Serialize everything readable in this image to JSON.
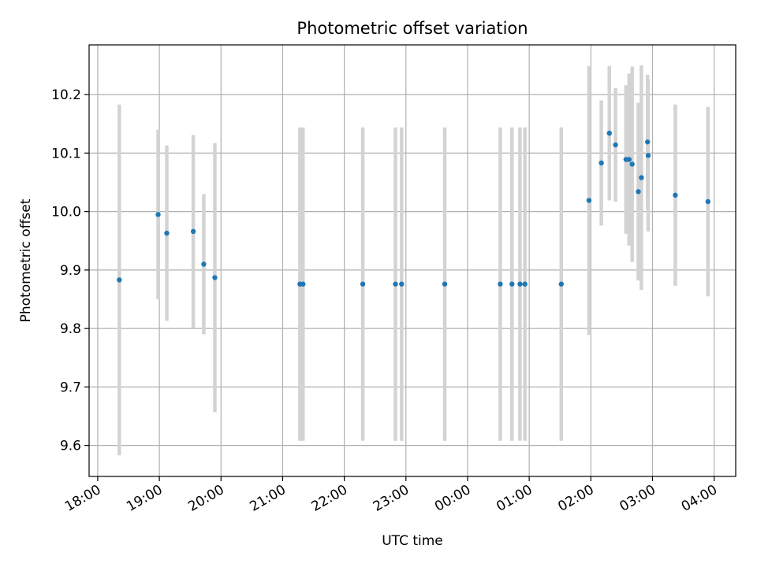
{
  "chart_data": {
    "type": "scatter",
    "title": "Photometric offset variation",
    "xlabel": "UTC time",
    "ylabel": "Photometric offset",
    "x_unit": "hours after 18:00 UTC (values past 24 wrap to next day)",
    "x_ticks": [
      "18:00",
      "19:00",
      "20:00",
      "21:00",
      "22:00",
      "23:00",
      "00:00",
      "01:00",
      "02:00",
      "03:00",
      "04:00"
    ],
    "y_ticks": [
      "9.6",
      "9.7",
      "9.8",
      "9.9",
      "10.0",
      "10.1",
      "10.2"
    ],
    "xlim": [
      -0.14,
      10.35
    ],
    "ylim": [
      9.547,
      10.285
    ],
    "grid": true,
    "colors": {
      "point": "#1f77b4",
      "errorbar": "#d3d3d3",
      "grid": "#b0b0b0"
    },
    "series": [
      {
        "points": [
          {
            "x": 0.35,
            "y": 9.883,
            "err": 0.3
          },
          {
            "x": 0.98,
            "y": 9.995,
            "err": 0.145
          },
          {
            "x": 1.12,
            "y": 9.963,
            "err": 0.15
          },
          {
            "x": 1.55,
            "y": 9.966,
            "err": 0.165
          },
          {
            "x": 1.72,
            "y": 9.91,
            "err": 0.12
          },
          {
            "x": 1.9,
            "y": 9.887,
            "err": 0.23
          },
          {
            "x": 3.28,
            "y": 9.876,
            "err": 0.268
          },
          {
            "x": 3.33,
            "y": 9.876,
            "err": 0.268
          },
          {
            "x": 4.3,
            "y": 9.876,
            "err": 0.268
          },
          {
            "x": 4.83,
            "y": 9.876,
            "err": 0.268
          },
          {
            "x": 4.93,
            "y": 9.876,
            "err": 0.268
          },
          {
            "x": 5.63,
            "y": 9.876,
            "err": 0.268
          },
          {
            "x": 6.53,
            "y": 9.876,
            "err": 0.268
          },
          {
            "x": 6.72,
            "y": 9.876,
            "err": 0.268
          },
          {
            "x": 6.85,
            "y": 9.876,
            "err": 0.268
          },
          {
            "x": 6.93,
            "y": 9.876,
            "err": 0.268
          },
          {
            "x": 7.52,
            "y": 9.876,
            "err": 0.268
          },
          {
            "x": 7.97,
            "y": 10.019,
            "err": 0.23
          },
          {
            "x": 8.17,
            "y": 10.083,
            "err": 0.107
          },
          {
            "x": 8.3,
            "y": 10.134,
            "err": 0.115
          },
          {
            "x": 8.4,
            "y": 10.114,
            "err": 0.097
          },
          {
            "x": 8.57,
            "y": 10.089,
            "err": 0.127
          },
          {
            "x": 8.62,
            "y": 10.089,
            "err": 0.147
          },
          {
            "x": 8.67,
            "y": 10.081,
            "err": 0.167
          },
          {
            "x": 8.77,
            "y": 10.034,
            "err": 0.152
          },
          {
            "x": 8.82,
            "y": 10.058,
            "err": 0.192
          },
          {
            "x": 8.92,
            "y": 10.119,
            "err": 0.115
          },
          {
            "x": 8.93,
            "y": 10.096,
            "err": 0.13
          },
          {
            "x": 9.37,
            "y": 10.028,
            "err": 0.155
          },
          {
            "x": 9.9,
            "y": 10.017,
            "err": 0.162
          }
        ]
      }
    ]
  }
}
